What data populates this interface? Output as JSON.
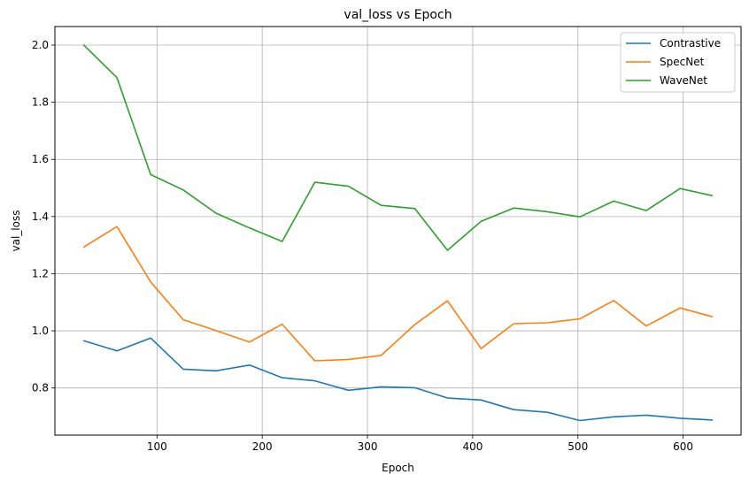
{
  "chart_data": {
    "type": "line",
    "title": "val_loss vs Epoch",
    "xlabel": "Epoch",
    "ylabel": "val_loss",
    "xlim": [
      3,
      655
    ],
    "ylim": [
      0.635,
      2.065
    ],
    "xticks": [
      100,
      200,
      300,
      400,
      500,
      600
    ],
    "yticks": [
      0.8,
      1.0,
      1.2,
      1.4,
      1.6,
      1.8,
      2.0
    ],
    "ytick_labels": [
      "0.8",
      "1.0",
      "1.2",
      "1.4",
      "1.6",
      "1.8",
      "2.0"
    ],
    "grid": true,
    "legend_position": "top-right",
    "x": [
      30,
      62,
      94,
      125,
      156,
      188,
      219,
      250,
      282,
      313,
      345,
      376,
      408,
      439,
      471,
      502,
      534,
      565,
      597,
      628
    ],
    "series": [
      {
        "name": "Contrastive",
        "color": "#1f77b4",
        "values": [
          0.966,
          0.93,
          0.975,
          0.866,
          0.86,
          0.88,
          0.836,
          0.825,
          0.792,
          0.804,
          0.801,
          0.765,
          0.758,
          0.724,
          0.715,
          0.686,
          0.699,
          0.705,
          0.694,
          0.688
        ]
      },
      {
        "name": "SpecNet",
        "color": "#ff7f0e",
        "values": [
          1.292,
          1.365,
          1.171,
          1.039,
          1.001,
          0.961,
          1.023,
          0.895,
          0.9,
          0.914,
          1.022,
          1.105,
          0.938,
          1.025,
          1.028,
          1.042,
          1.106,
          1.017,
          1.08,
          1.049
        ]
      },
      {
        "name": "WaveNet",
        "color": "#2ca02c",
        "values": [
          2.002,
          1.886,
          1.547,
          1.493,
          1.412,
          1.36,
          1.313,
          1.52,
          1.506,
          1.439,
          1.428,
          1.282,
          1.383,
          1.43,
          1.417,
          1.399,
          1.454,
          1.421,
          1.498,
          1.473
        ]
      }
    ]
  }
}
